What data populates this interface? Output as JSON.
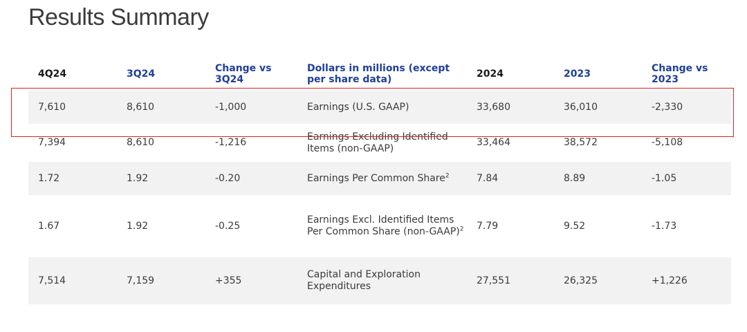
{
  "title": "Results Summary",
  "table": {
    "headers": [
      "4Q24",
      "3Q24",
      "Change vs 3Q24",
      "Dollars in millions (except per share data)",
      "2024",
      "2023",
      "Change vs 2023"
    ],
    "rows": [
      {
        "q4_2024": "7,610",
        "q3_2024": "8,610",
        "change_q": "-1,000",
        "metric": "Earnings (U.S. GAAP)",
        "metric_sup": "",
        "y2024": "33,680",
        "y2023": "36,010",
        "change_y": "-2,330"
      },
      {
        "q4_2024": "7,394",
        "q3_2024": "8,610",
        "change_q": "-1,216",
        "metric": "Earnings Excluding Identified Items (non-GAAP)",
        "metric_sup": "",
        "y2024": "33,464",
        "y2023": "38,572",
        "change_y": "-5,108"
      },
      {
        "q4_2024": "1.72",
        "q3_2024": "1.92",
        "change_q": "-0.20",
        "metric": "Earnings Per Common Share",
        "metric_sup": "2",
        "y2024": "7.84",
        "y2023": "8.89",
        "change_y": "-1.05"
      },
      {
        "q4_2024": "1.67",
        "q3_2024": "1.92",
        "change_q": "-0.25",
        "metric": "Earnings Excl. Identified Items Per Common Share (non-GAAP)",
        "metric_sup": "2",
        "y2024": "7.79",
        "y2023": "9.52",
        "change_y": "-1.73"
      },
      {
        "q4_2024": "7,514",
        "q3_2024": "7,159",
        "change_q": "+355",
        "metric": "Capital and Exploration Expenditures",
        "metric_sup": "",
        "y2024": "27,551",
        "y2023": "26,325",
        "change_y": "+1,226"
      }
    ]
  },
  "colors": {
    "header_blue": "#1f3f98",
    "row_shade": "#f2f2f2",
    "highlight_border": "#e02020"
  }
}
